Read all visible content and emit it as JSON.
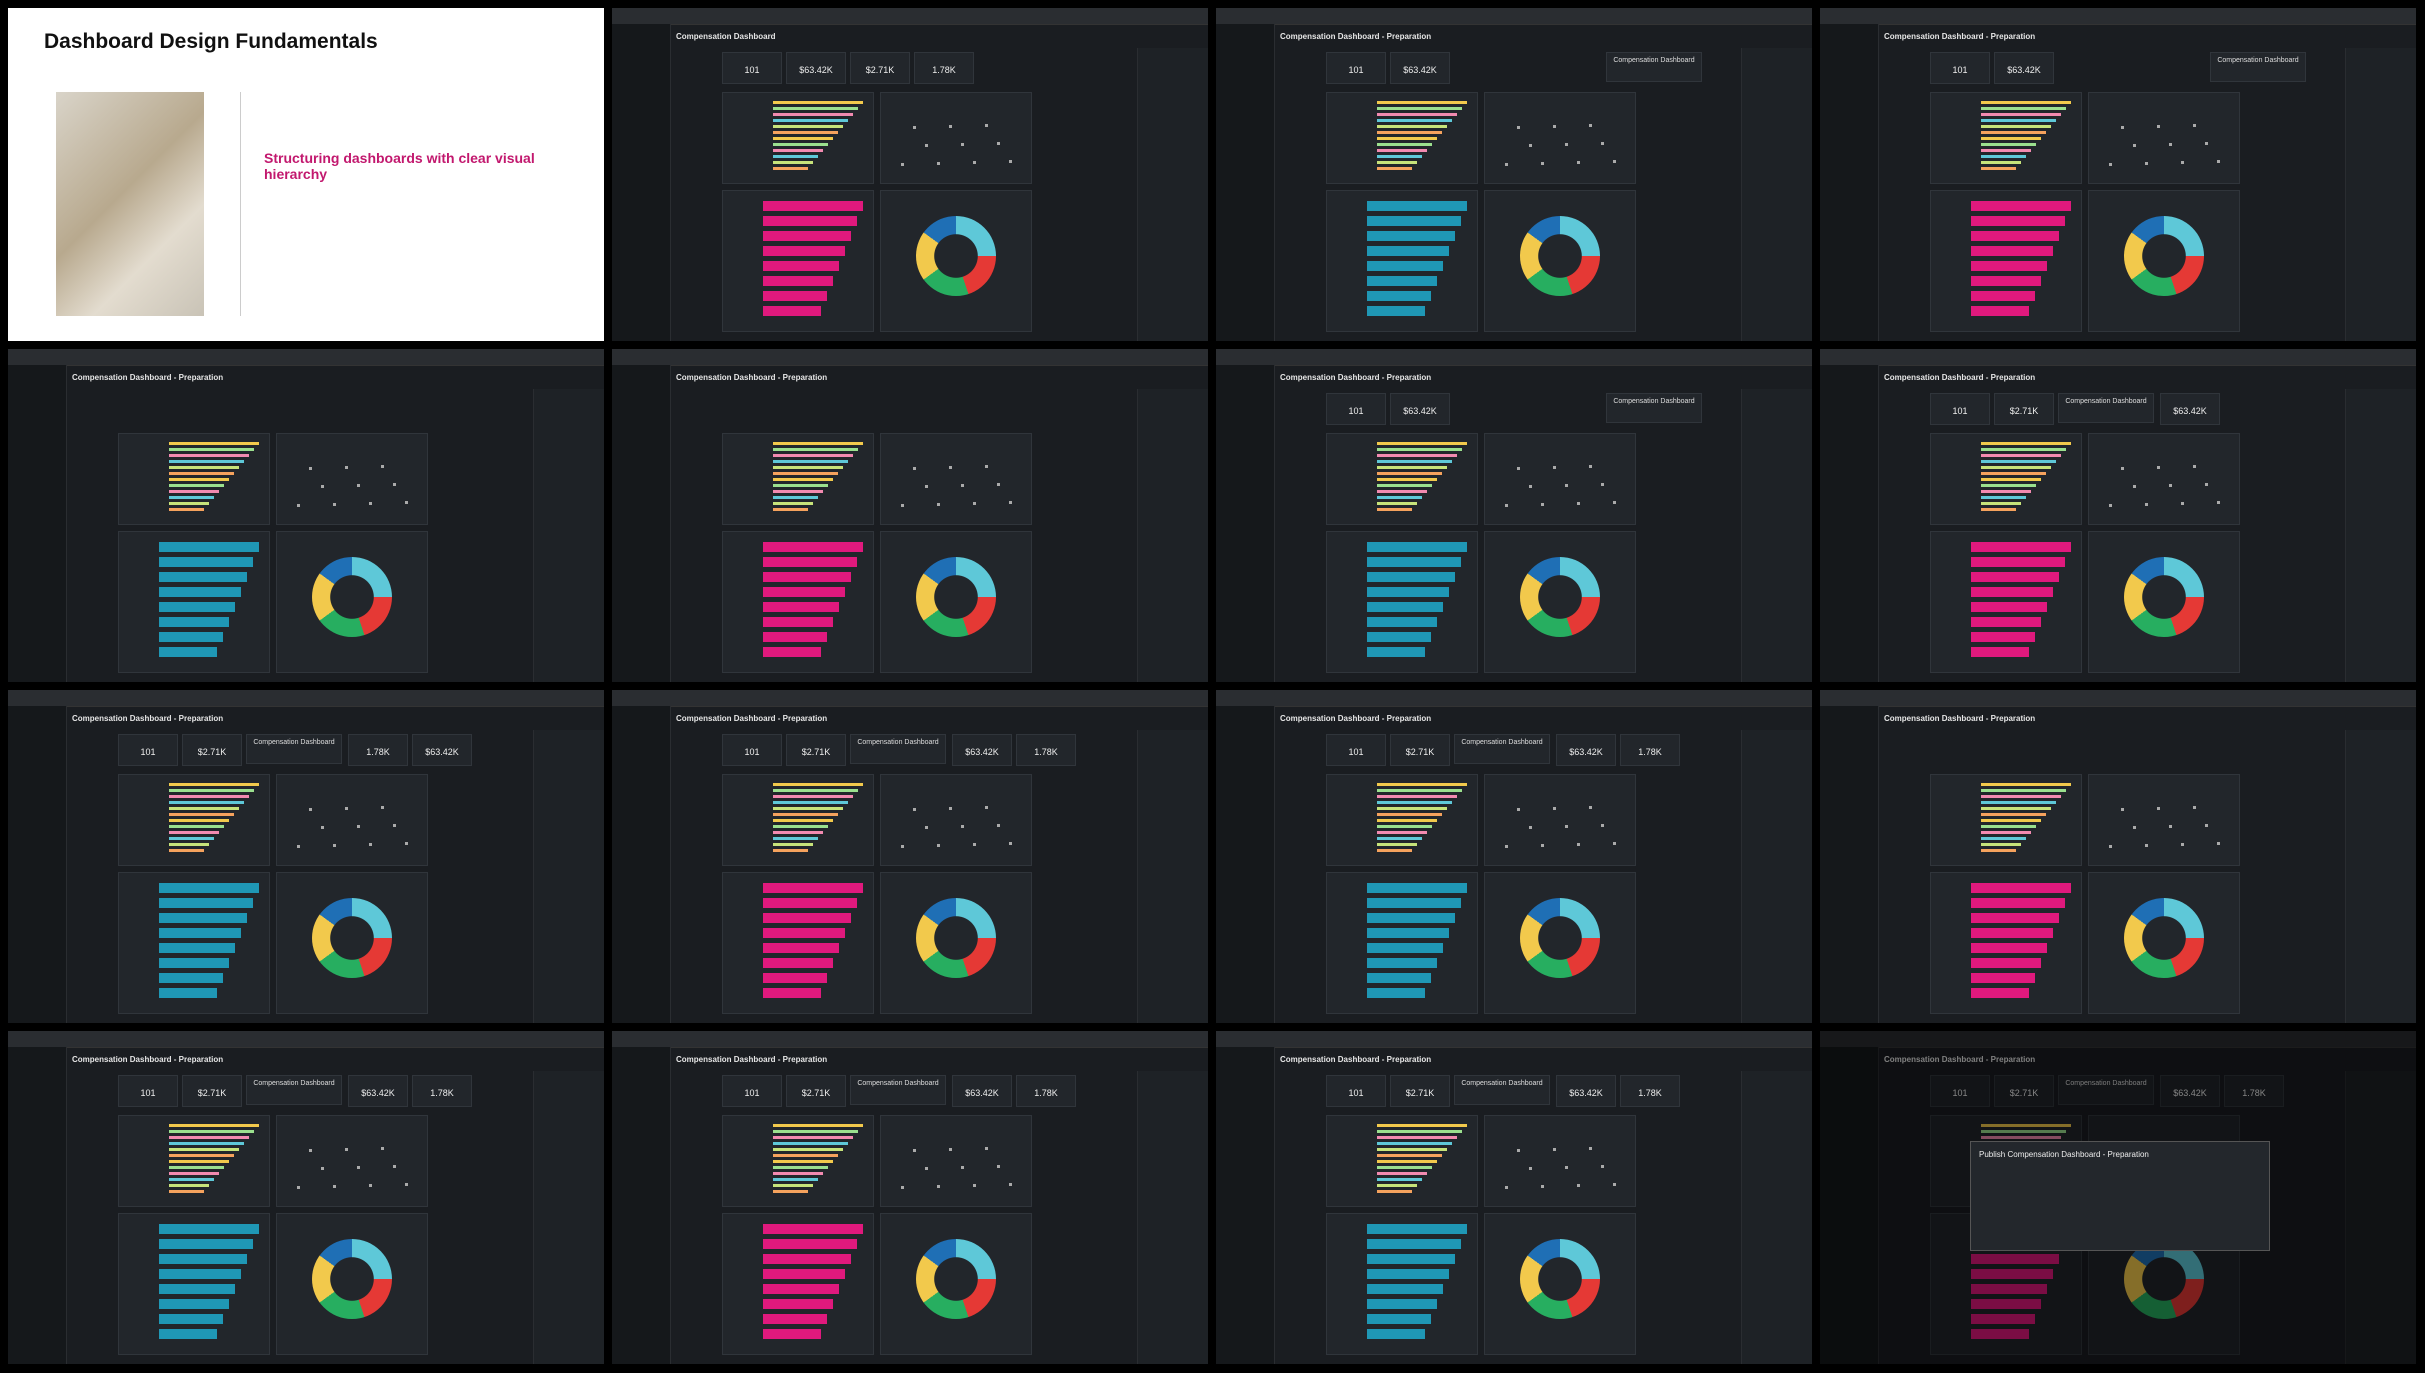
{
  "slide": {
    "title": "Dashboard Design Fundamentals",
    "subtitle": "Structuring dashboards with clear visual hierarchy"
  },
  "frames": [
    {
      "title": "Compensation Dashboard",
      "kpis": [
        "101",
        "$63.42K",
        "$2.71K",
        "1.78K"
      ]
    },
    {
      "title": "Compensation Dashboard - Preparation",
      "kpis": [
        "101",
        "$63.42K"
      ],
      "banner": "Compensation Dashboard"
    },
    {
      "title": "Compensation Dashboard - Preparation",
      "kpis": [
        "101",
        "$63.42K"
      ],
      "banner": "Compensation Dashboard"
    },
    {
      "title": "Compensation Dashboard - Preparation",
      "kpis": []
    },
    {
      "title": "Compensation Dashboard - Preparation",
      "kpis": []
    },
    {
      "title": "Compensation Dashboard - Preparation",
      "kpis": [
        "101",
        "$63.42K"
      ],
      "banner": "Compensation Dashboard"
    },
    {
      "title": "Compensation Dashboard - Preparation",
      "kpis": [
        "101",
        "$2.71K",
        "$63.42K"
      ],
      "banner": "Compensation Dashboard"
    },
    {
      "title": "Compensation Dashboard - Preparation",
      "kpis": [
        "101",
        "$2.71K",
        "1.78K",
        "$63.42K"
      ],
      "banner": "Compensation Dashboard"
    },
    {
      "title": "Compensation Dashboard - Preparation",
      "kpis": [
        "101",
        "$2.71K",
        "$63.42K",
        "1.78K"
      ],
      "banner": "Compensation Dashboard"
    },
    {
      "title": "Compensation Dashboard - Preparation",
      "kpis": [
        "101",
        "$2.71K",
        "$63.42K",
        "1.78K"
      ],
      "banner": "Compensation Dashboard"
    },
    {
      "title": "Compensation Dashboard - Preparation",
      "kpis": []
    },
    {
      "title": "Compensation Dashboard - Preparation",
      "kpis": [
        "101",
        "$2.71K",
        "$63.42K",
        "1.78K"
      ],
      "banner": "Compensation Dashboard"
    },
    {
      "title": "Compensation Dashboard - Preparation",
      "kpis": [
        "101",
        "$2.71K",
        "$63.42K",
        "1.78K"
      ],
      "banner": "Compensation Dashboard"
    },
    {
      "title": "Compensation Dashboard - Preparation",
      "kpis": [
        "101",
        "$2.71K",
        "$63.42K",
        "1.78K"
      ],
      "banner": "Compensation Dashboard"
    },
    {
      "title": "Compensation Dashboard - Preparation",
      "kpis": [
        "101",
        "$2.71K",
        "$63.42K",
        "1.78K"
      ],
      "banner": "Compensation Dashboard",
      "modal": "Publish Compensation Dashboard - Preparation"
    }
  ]
}
